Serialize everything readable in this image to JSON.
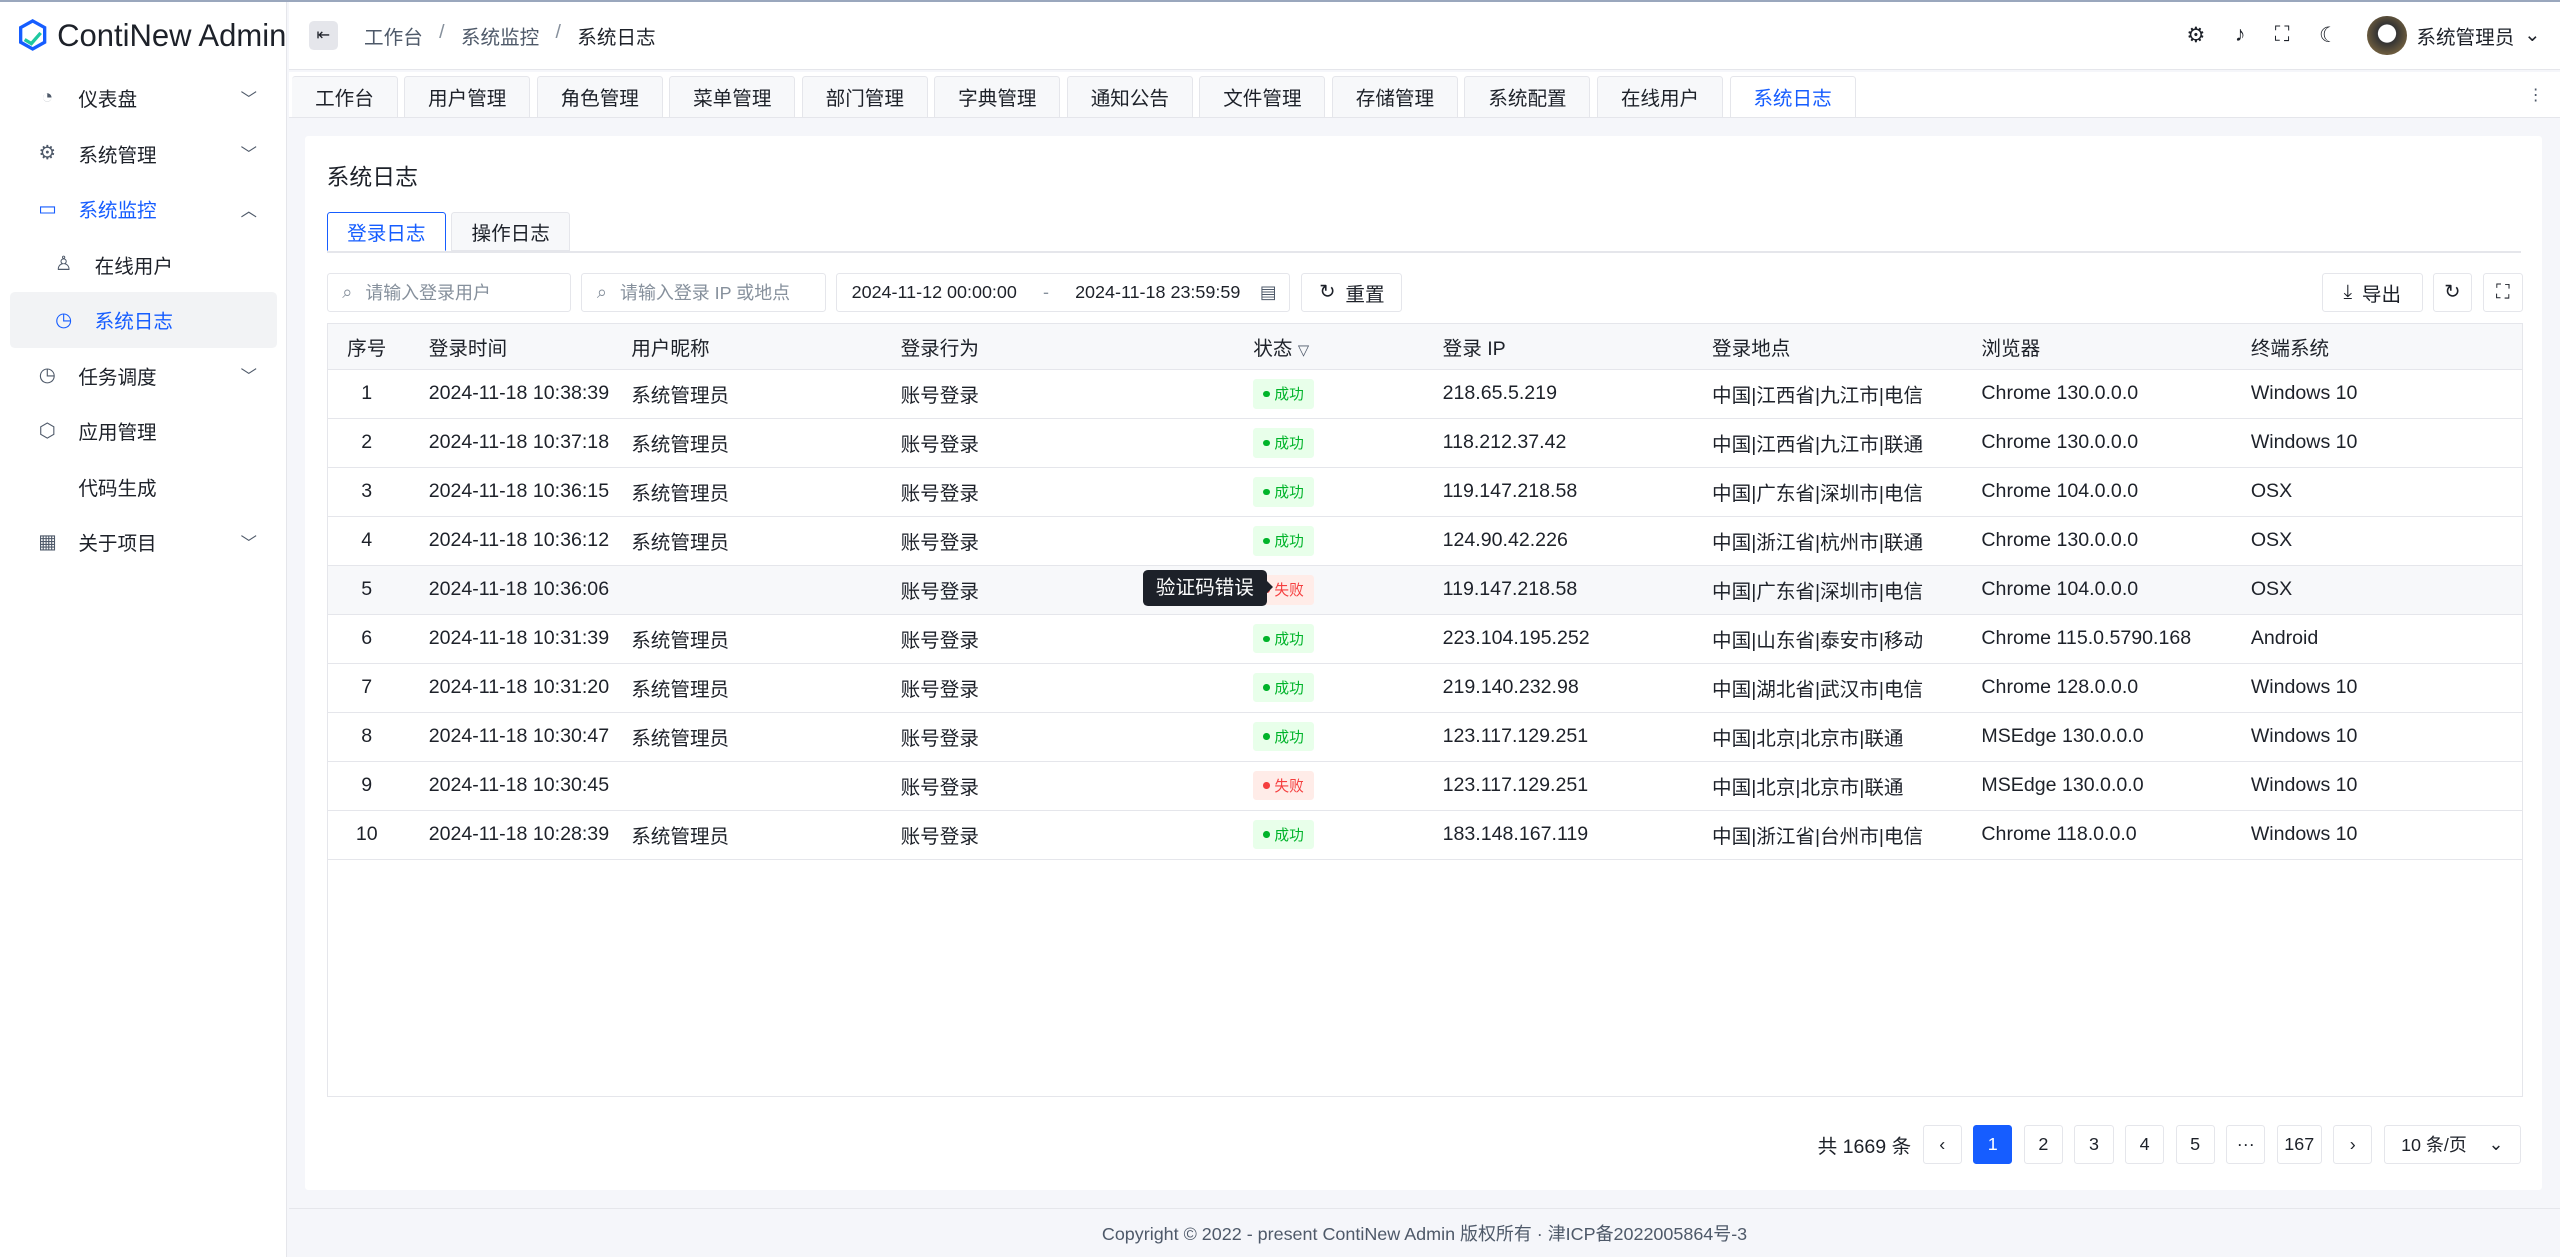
{
  "app": {
    "name": "ContiNew Admin"
  },
  "sidebar": {
    "items": [
      {
        "label": "仪表盘",
        "icon": "dashboard-icon"
      },
      {
        "label": "系统管理",
        "icon": "gear-icon"
      },
      {
        "label": "系统监控",
        "icon": "monitor-icon"
      },
      {
        "label": "在线用户",
        "icon": "user-icon"
      },
      {
        "label": "系统日志",
        "icon": "history-icon"
      },
      {
        "label": "任务调度",
        "icon": "clock-icon"
      },
      {
        "label": "应用管理",
        "icon": "cube-icon"
      },
      {
        "label": "代码生成",
        "icon": "code-icon"
      },
      {
        "label": "关于项目",
        "icon": "grid-icon"
      }
    ]
  },
  "breadcrumb": [
    "工作台",
    "系统监控",
    "系统日志"
  ],
  "header": {
    "user": "系统管理员"
  },
  "tabs": [
    "工作台",
    "用户管理",
    "角色管理",
    "菜单管理",
    "部门管理",
    "字典管理",
    "通知公告",
    "文件管理",
    "存储管理",
    "系统配置",
    "在线用户",
    "系统日志"
  ],
  "page": {
    "title": "系统日志",
    "subtabs": [
      "登录日志",
      "操作日志"
    ],
    "filters": {
      "user_placeholder": "请输入登录用户",
      "ip_placeholder": "请输入登录 IP 或地点",
      "start": "2024-11-12 00:00:00",
      "sep": "-",
      "end": "2024-11-18 23:59:59",
      "reset": "重置",
      "export": "导出"
    }
  },
  "table": {
    "columns": [
      "序号",
      "登录时间",
      "用户昵称",
      "登录行为",
      "状态",
      "登录 IP",
      "登录地点",
      "浏览器",
      "终端系统"
    ],
    "rows": [
      [
        "1",
        "2024-11-18 10:38:39",
        "系统管理员",
        "账号登录",
        "成功",
        "218.65.5.219",
        "中国|江西省|九江市|电信",
        "Chrome 130.0.0.0",
        "Windows 10"
      ],
      [
        "2",
        "2024-11-18 10:37:18",
        "系统管理员",
        "账号登录",
        "成功",
        "118.212.37.42",
        "中国|江西省|九江市|联通",
        "Chrome 130.0.0.0",
        "Windows 10"
      ],
      [
        "3",
        "2024-11-18 10:36:15",
        "系统管理员",
        "账号登录",
        "成功",
        "119.147.218.58",
        "中国|广东省|深圳市|电信",
        "Chrome 104.0.0.0",
        "OSX"
      ],
      [
        "4",
        "2024-11-18 10:36:12",
        "系统管理员",
        "账号登录",
        "成功",
        "124.90.42.226",
        "中国|浙江省|杭州市|联通",
        "Chrome 130.0.0.0",
        "OSX"
      ],
      [
        "5",
        "2024-11-18 10:36:06",
        "",
        "账号登录",
        "失败",
        "119.147.218.58",
        "中国|广东省|深圳市|电信",
        "Chrome 104.0.0.0",
        "OSX"
      ],
      [
        "6",
        "2024-11-18 10:31:39",
        "系统管理员",
        "账号登录",
        "成功",
        "223.104.195.252",
        "中国|山东省|泰安市|移动",
        "Chrome 115.0.5790.168",
        "Android"
      ],
      [
        "7",
        "2024-11-18 10:31:20",
        "系统管理员",
        "账号登录",
        "成功",
        "219.140.232.98",
        "中国|湖北省|武汉市|电信",
        "Chrome 128.0.0.0",
        "Windows 10"
      ],
      [
        "8",
        "2024-11-18 10:30:47",
        "系统管理员",
        "账号登录",
        "成功",
        "123.117.129.251",
        "中国|北京|北京市|联通",
        "MSEdge 130.0.0.0",
        "Windows 10"
      ],
      [
        "9",
        "2024-11-18 10:30:45",
        "",
        "账号登录",
        "失败",
        "123.117.129.251",
        "中国|北京|北京市|联通",
        "MSEdge 130.0.0.0",
        "Windows 10"
      ],
      [
        "10",
        "2024-11-18 10:28:39",
        "系统管理员",
        "账号登录",
        "成功",
        "183.148.167.119",
        "中国|浙江省|台州市|电信",
        "Chrome 118.0.0.0",
        "Windows 10"
      ]
    ],
    "tooltip": "验证码错误"
  },
  "pagination": {
    "total": "共 1669 条",
    "pages": [
      "1",
      "2",
      "3",
      "4",
      "5",
      "···",
      "167"
    ],
    "current": "1",
    "page_size": "10 条/页"
  },
  "footer": "Copyright © 2022 - present ContiNew Admin 版权所有 · 津ICP备2022005864号-3",
  "colors": {
    "primary": "#165dff",
    "success": "#00b42a",
    "danger": "#f53f3f"
  }
}
